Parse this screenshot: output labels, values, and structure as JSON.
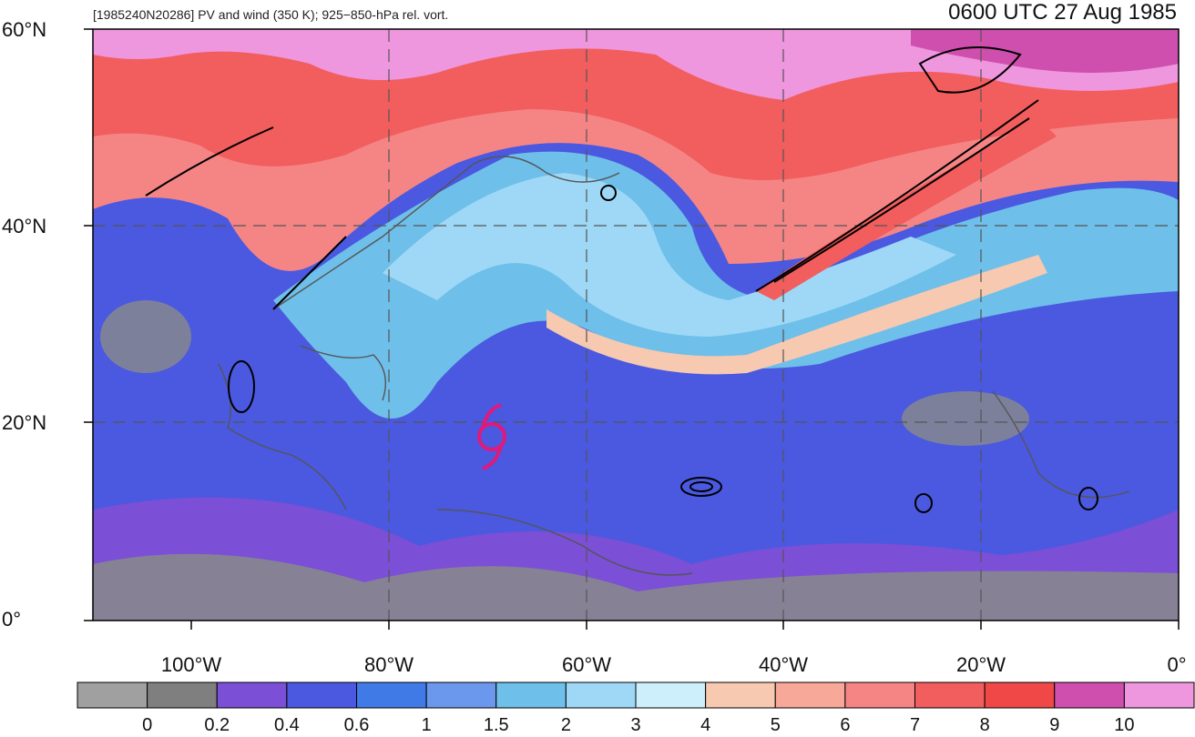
{
  "header": {
    "left_title": "[1985240N20286] PV and wind (350 K); 925−850-hPa rel. vort.",
    "right_title": "0600 UTC 27 Aug 1985"
  },
  "axes": {
    "lat_labels": [
      "60°N",
      "40°N",
      "20°N",
      "0°"
    ],
    "lon_labels": [
      "100°W",
      "80°W",
      "60°W",
      "40°W",
      "20°W",
      "0°"
    ]
  },
  "colorbar": {
    "labels": [
      "0",
      "0.2",
      "0.4",
      "0.6",
      "1",
      "1.5",
      "2",
      "3",
      "4",
      "5",
      "6",
      "7",
      "8",
      "9",
      "10"
    ],
    "colors": [
      "#a0a0a0",
      "#7f7f7f",
      "#7b4fd6",
      "#4a59e0",
      "#3f7ae6",
      "#6b98ec",
      "#6ebfe9",
      "#9ed8f6",
      "#cdeefb",
      "#f7c9b0",
      "#f8a898",
      "#f58585",
      "#f25d5d",
      "#f04747",
      "#cf4fae",
      "#ee96de"
    ]
  },
  "map": {
    "storm_symbol": "tropical-cyclone-icon",
    "storm_color": "#e0197a"
  }
}
